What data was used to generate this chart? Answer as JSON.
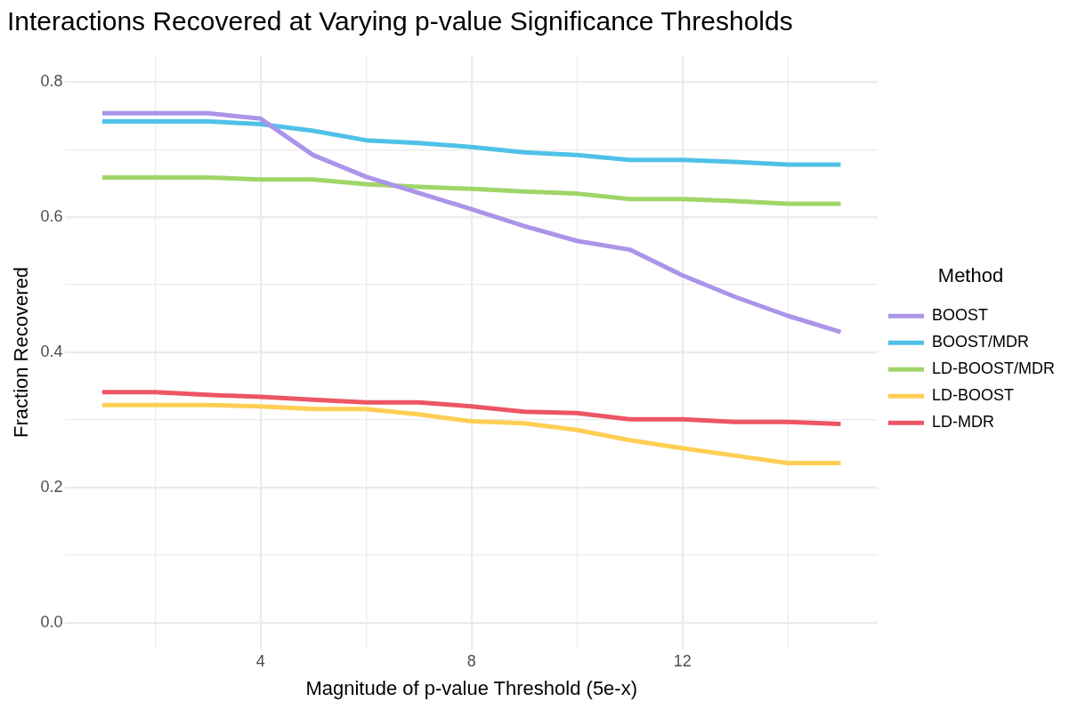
{
  "chart_data": {
    "type": "line",
    "title": "Interactions Recovered at Varying p-value Significance Thresholds",
    "xlabel": "Magnitude of p-value Threshold (5e-x)",
    "ylabel": "Fraction Recovered",
    "legend_title": "Method",
    "legend": "right",
    "grid": true,
    "line_style": "solid",
    "marker": "none",
    "x": [
      1,
      2,
      3,
      4,
      5,
      6,
      7,
      8,
      9,
      10,
      11,
      12,
      13,
      14,
      15
    ],
    "xlim": [
      0.3,
      15.7
    ],
    "xticks": [
      {
        "value": 2,
        "label": null
      },
      4,
      {
        "value": 6,
        "label": null
      },
      8,
      {
        "value": 10,
        "label": null
      },
      12,
      {
        "value": 14,
        "label": null
      }
    ],
    "ylim": [
      -0.04,
      0.84
    ],
    "yticks": [
      {
        "value": 0,
        "label": "0.0"
      },
      {
        "value": 0.1,
        "label": null
      },
      0.2,
      {
        "value": 0.3,
        "label": null
      },
      0.4,
      {
        "value": 0.5,
        "label": null
      },
      0.6,
      {
        "value": 0.7,
        "label": null
      },
      0.8
    ],
    "series": [
      {
        "name": "BOOST",
        "color": "#ab94e9",
        "values": [
          0.754,
          0.754,
          0.754,
          0.746,
          0.692,
          0.66,
          0.636,
          0.612,
          0.587,
          0.565,
          0.552,
          0.514,
          0.482,
          0.454,
          0.43
        ]
      },
      {
        "name": "BOOST/MDR",
        "color": "#4fc1e8",
        "values": [
          0.742,
          0.742,
          0.742,
          0.738,
          0.728,
          0.714,
          0.71,
          0.704,
          0.696,
          0.692,
          0.685,
          0.685,
          0.682,
          0.678,
          0.678
        ]
      },
      {
        "name": "LD-BOOST/MDR",
        "color": "#a0d568",
        "values": [
          0.659,
          0.659,
          0.659,
          0.656,
          0.656,
          0.649,
          0.645,
          0.642,
          0.638,
          0.635,
          0.627,
          0.627,
          0.624,
          0.62,
          0.62
        ]
      },
      {
        "name": "LD-BOOST",
        "color": "#ffce54",
        "values": [
          0.322,
          0.322,
          0.322,
          0.32,
          0.316,
          0.316,
          0.308,
          0.298,
          0.295,
          0.285,
          0.27,
          0.258,
          0.247,
          0.236,
          0.236
        ]
      },
      {
        "name": "LD-MDR",
        "color": "#ed5564",
        "values": [
          0.341,
          0.341,
          0.337,
          0.334,
          0.33,
          0.326,
          0.326,
          0.32,
          0.312,
          0.31,
          0.301,
          0.301,
          0.297,
          0.297,
          0.294
        ]
      }
    ]
  }
}
